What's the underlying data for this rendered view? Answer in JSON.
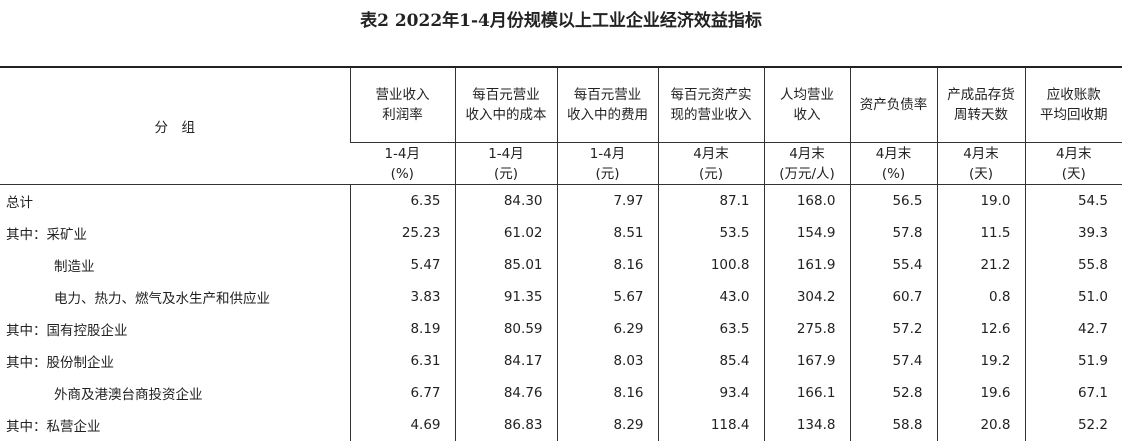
{
  "title": "表2  2022年1-4月份规模以上工业企业经济效益指标",
  "header": {
    "group": "分　组",
    "columns": [
      {
        "name": [
          "营业收入",
          "利润率"
        ],
        "unit": [
          "1-4月",
          "(%)"
        ]
      },
      {
        "name": [
          "每百元营业",
          "收入中的成本"
        ],
        "unit": [
          "1-4月",
          "(元)"
        ]
      },
      {
        "name": [
          "每百元营业",
          "收入中的费用"
        ],
        "unit": [
          "1-4月",
          "(元)"
        ]
      },
      {
        "name": [
          "每百元资产实",
          "现的营业收入"
        ],
        "unit": [
          "4月末",
          "(元)"
        ]
      },
      {
        "name": [
          "人均营业",
          "收入"
        ],
        "unit": [
          "4月末",
          "(万元/人)"
        ]
      },
      {
        "name": [
          "资产负债率"
        ],
        "unit": [
          "4月末",
          "(%)"
        ]
      },
      {
        "name": [
          "产成品存货",
          "周转天数"
        ],
        "unit": [
          "4月末",
          "(天)"
        ]
      },
      {
        "name": [
          "应收账款",
          "平均回收期"
        ],
        "unit": [
          "4月末",
          "(天)"
        ]
      }
    ]
  },
  "rows": [
    {
      "label": "总计",
      "values": [
        "6.35",
        "84.30",
        "7.97",
        "87.1",
        "168.0",
        "56.5",
        "19.0",
        "54.5"
      ]
    },
    {
      "label": "其中：采矿业",
      "values": [
        "25.23",
        "61.02",
        "8.51",
        "53.5",
        "154.9",
        "57.8",
        "11.5",
        "39.3"
      ]
    },
    {
      "label": "制造业",
      "values": [
        "5.47",
        "85.01",
        "8.16",
        "100.8",
        "161.9",
        "55.4",
        "21.2",
        "55.8"
      ]
    },
    {
      "label": "电力、热力、燃气及水生产和供应业",
      "values": [
        "3.83",
        "91.35",
        "5.67",
        "43.0",
        "304.2",
        "60.7",
        "0.8",
        "51.0"
      ]
    },
    {
      "label": "其中：国有控股企业",
      "values": [
        "8.19",
        "80.59",
        "6.29",
        "63.5",
        "275.8",
        "57.2",
        "12.6",
        "42.7"
      ]
    },
    {
      "label": "其中：股份制企业",
      "values": [
        "6.31",
        "84.17",
        "8.03",
        "85.4",
        "167.9",
        "57.4",
        "19.2",
        "51.9"
      ]
    },
    {
      "label": "外商及港澳台商投资企业",
      "values": [
        "6.77",
        "84.76",
        "8.16",
        "93.4",
        "166.1",
        "52.8",
        "19.6",
        "67.1"
      ]
    },
    {
      "label": "其中：私营企业",
      "values": [
        "4.69",
        "86.83",
        "8.29",
        "118.4",
        "134.8",
        "58.8",
        "20.8",
        "52.2"
      ]
    }
  ]
}
